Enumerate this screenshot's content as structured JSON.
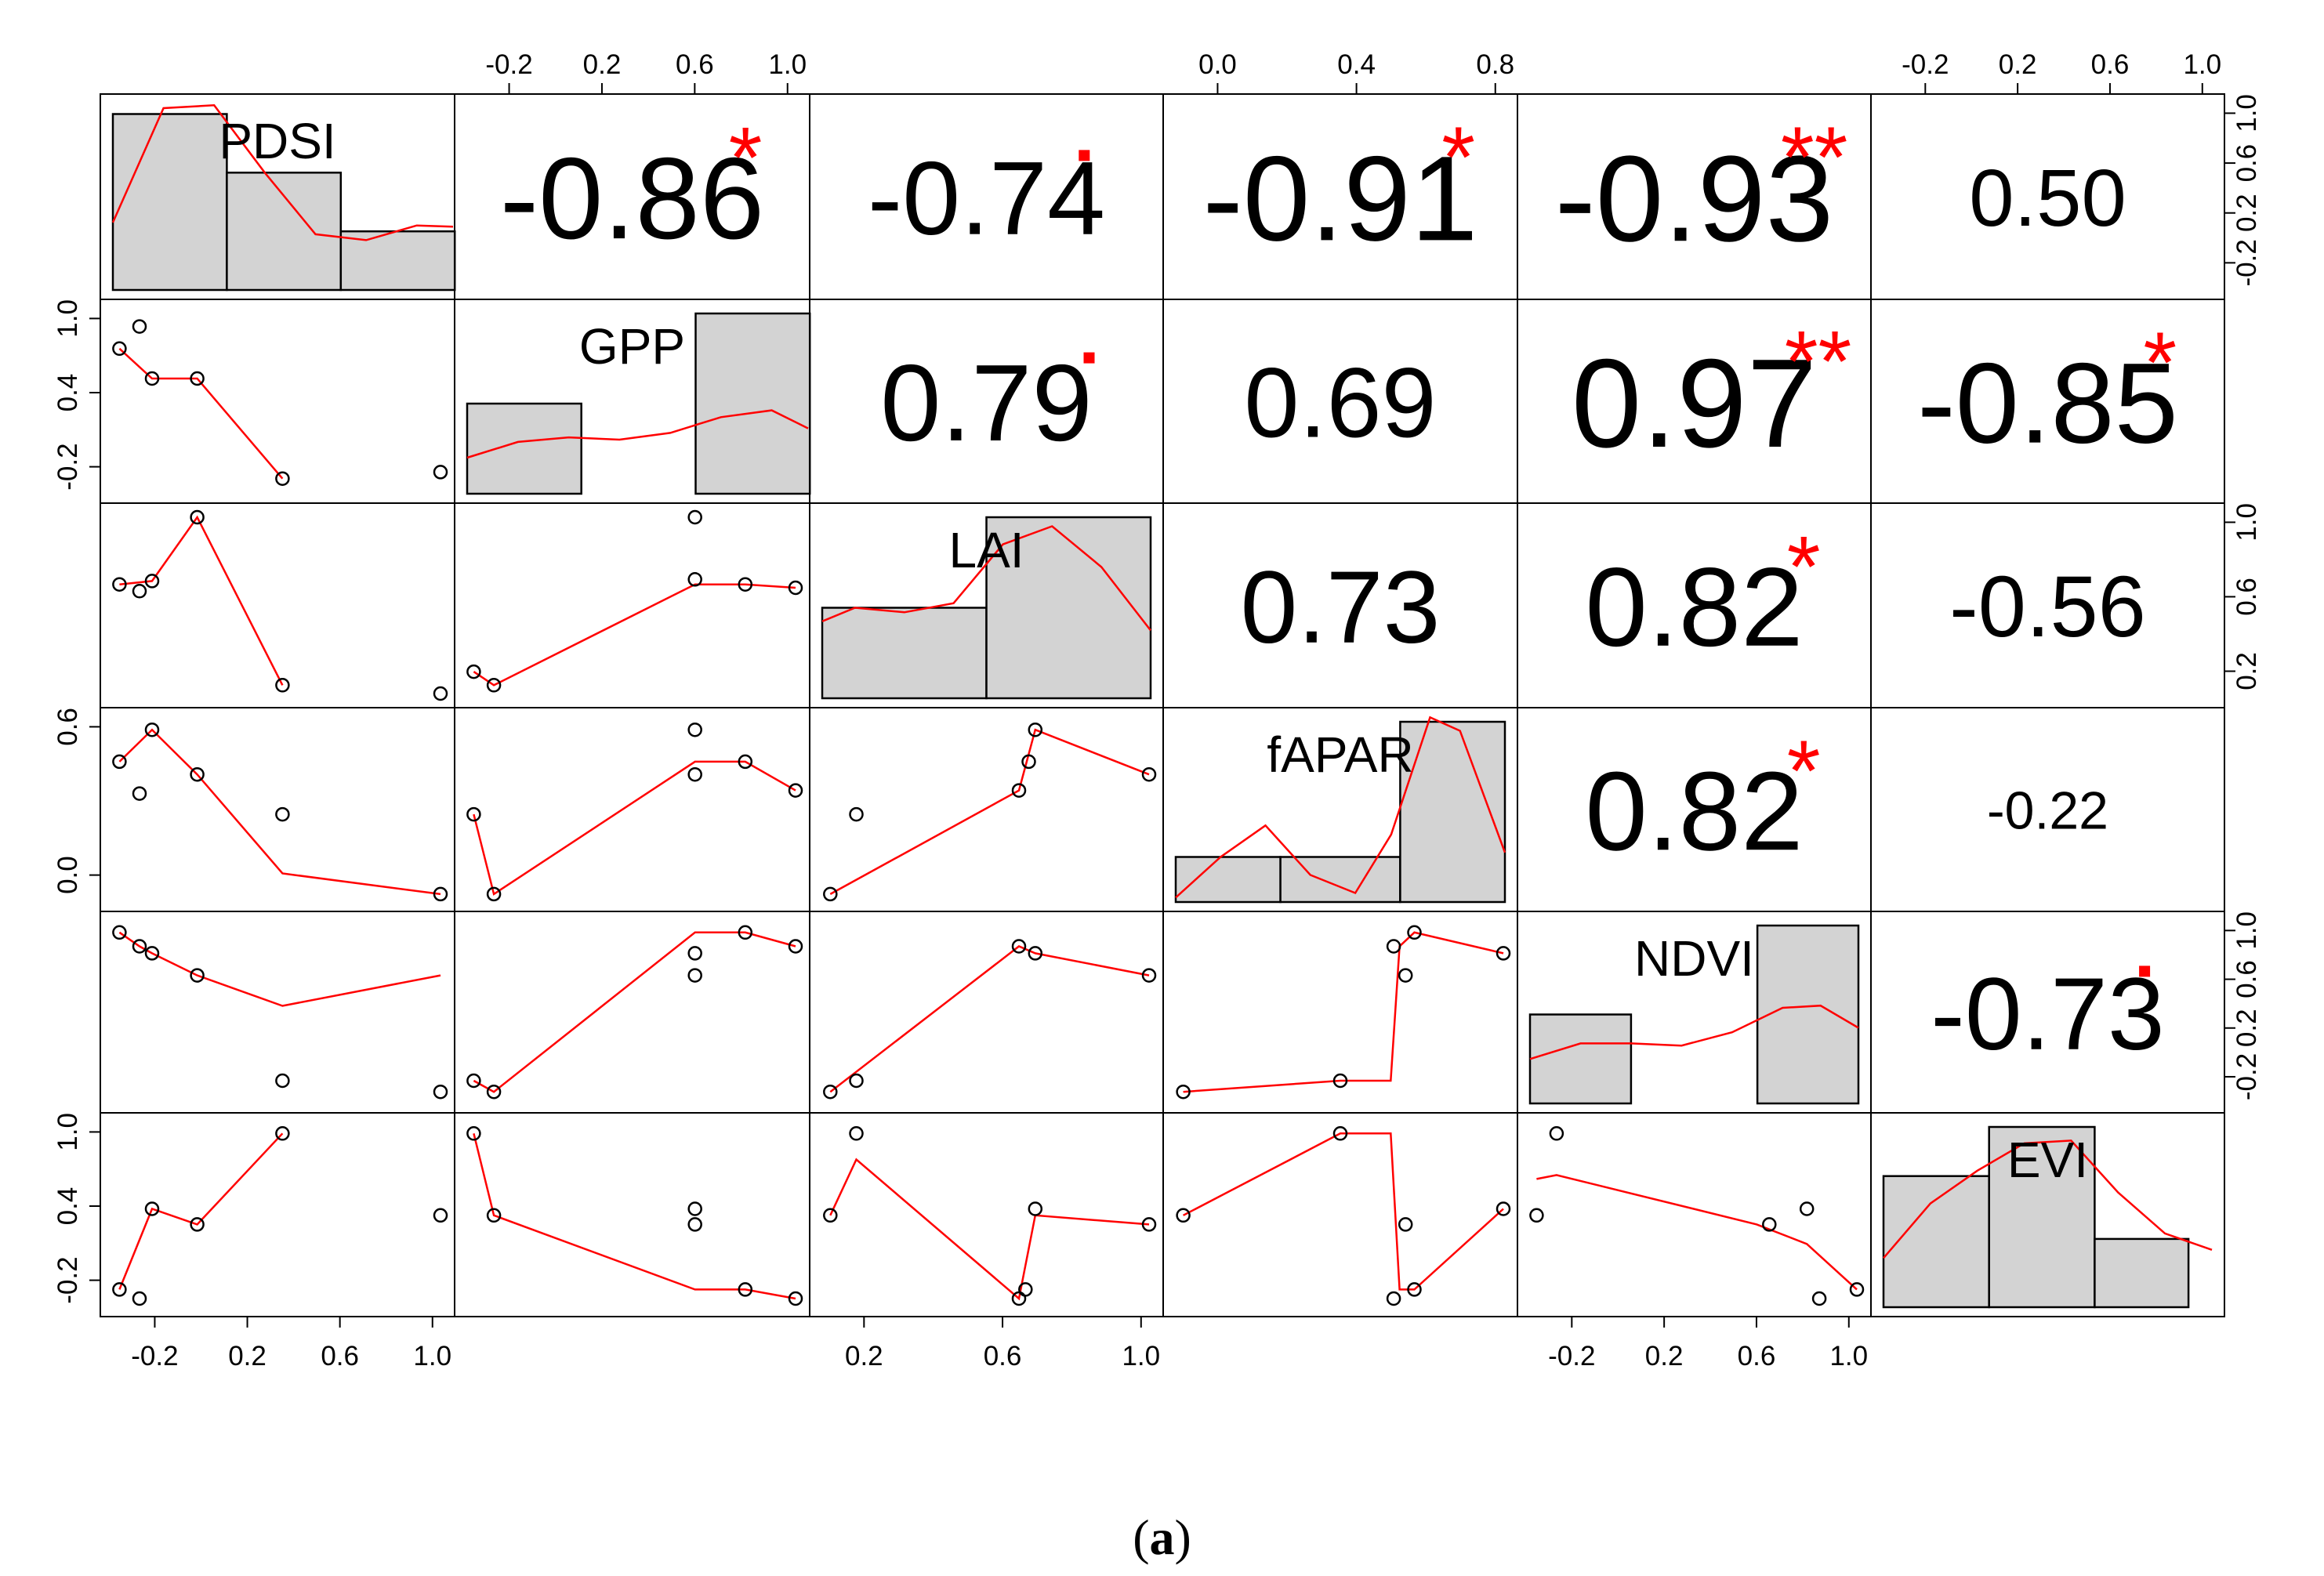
{
  "chart_data": {
    "type": "scatter-matrix",
    "variables": [
      "PDSI",
      "GPP",
      "LAI",
      "fAPAR",
      "NDVI",
      "EVI"
    ],
    "axis_ticks": {
      "top": [
        {
          "col": 1,
          "labels": [
            "-0.2",
            "0.2",
            "0.6",
            "1.0"
          ]
        },
        {
          "col": 3,
          "labels": [
            "0.0",
            "0.4",
            "0.8"
          ]
        },
        {
          "col": 5,
          "labels": [
            "-0.2",
            "0.2",
            "0.6",
            "1.0"
          ]
        }
      ],
      "bottom": [
        {
          "col": 0,
          "labels": [
            "-0.2",
            "0.2",
            "0.6",
            "1.0"
          ]
        },
        {
          "col": 2,
          "labels": [
            "0.2",
            "0.6",
            "1.0"
          ]
        },
        {
          "col": 4,
          "labels": [
            "-0.2",
            "0.2",
            "0.6",
            "1.0"
          ]
        }
      ],
      "left": [
        {
          "row": 1,
          "labels": [
            "-0.2",
            "0.4",
            "1.0"
          ]
        },
        {
          "row": 3,
          "labels": [
            "0.0",
            "0.6"
          ]
        },
        {
          "row": 5,
          "labels": [
            "-0.2",
            "0.4",
            "1.0"
          ]
        }
      ],
      "right": [
        {
          "row": 0,
          "labels": [
            "-0.2",
            "0.2",
            "0.6",
            "1.0"
          ]
        },
        {
          "row": 2,
          "labels": [
            "0.2",
            "0.6",
            "1.0"
          ]
        },
        {
          "row": 4,
          "labels": [
            "-0.2",
            "0.2",
            "0.6",
            "1.0"
          ]
        }
      ]
    },
    "correlations": [
      {
        "row": 0,
        "col": 1,
        "value": "-0.86",
        "sig": "*"
      },
      {
        "row": 0,
        "col": 2,
        "value": "-0.74",
        "sig": "."
      },
      {
        "row": 0,
        "col": 3,
        "value": "-0.91",
        "sig": "*"
      },
      {
        "row": 0,
        "col": 4,
        "value": "-0.93",
        "sig": "**"
      },
      {
        "row": 0,
        "col": 5,
        "value": "0.50",
        "sig": ""
      },
      {
        "row": 1,
        "col": 2,
        "value": "0.79",
        "sig": "."
      },
      {
        "row": 1,
        "col": 3,
        "value": "0.69",
        "sig": ""
      },
      {
        "row": 1,
        "col": 4,
        "value": "0.97",
        "sig": "**"
      },
      {
        "row": 1,
        "col": 5,
        "value": "-0.85",
        "sig": "*"
      },
      {
        "row": 2,
        "col": 3,
        "value": "0.73",
        "sig": ""
      },
      {
        "row": 2,
        "col": 4,
        "value": "0.82",
        "sig": "*"
      },
      {
        "row": 2,
        "col": 5,
        "value": "-0.56",
        "sig": ""
      },
      {
        "row": 3,
        "col": 4,
        "value": "0.82",
        "sig": "*"
      },
      {
        "row": 3,
        "col": 5,
        "value": "-0.22",
        "sig": ""
      },
      {
        "row": 4,
        "col": 5,
        "value": "-0.73",
        "sig": "."
      }
    ],
    "histograms": [
      {
        "var": "PDSI",
        "range": [
          -0.3,
          1.0
        ],
        "bins": [
          [
            -0.3,
            0.15,
            3
          ],
          [
            0.15,
            0.6,
            2
          ],
          [
            0.6,
            1.05,
            1
          ]
        ],
        "density_x": [
          -0.3,
          -0.1,
          0.1,
          0.3,
          0.5,
          0.7,
          0.9,
          1.05
        ],
        "density_y": [
          1.15,
          3.1,
          3.15,
          2.0,
          0.95,
          0.85,
          1.1,
          1.08
        ],
        "ymax": 3.1
      },
      {
        "var": "GPP",
        "range": [
          -0.3,
          1.0
        ],
        "bins": [
          [
            -0.3,
            0.15,
            2
          ],
          [
            0.15,
            0.6,
            0
          ],
          [
            0.6,
            1.05,
            4
          ]
        ],
        "density_x": [
          -0.3,
          -0.1,
          0.1,
          0.3,
          0.5,
          0.7,
          0.9,
          1.05
        ],
        "density_y": [
          0.8,
          1.15,
          1.25,
          1.2,
          1.35,
          1.7,
          1.85,
          1.45
        ],
        "ymax": 4
      },
      {
        "var": "LAI",
        "range": [
          0.0,
          1.0
        ],
        "bins": [
          [
            0.0,
            0.5,
            2
          ],
          [
            0.5,
            1.0,
            4
          ]
        ],
        "density_x": [
          0.0,
          0.1,
          0.25,
          0.4,
          0.55,
          0.7,
          0.85,
          1.0
        ],
        "density_y": [
          1.7,
          2.0,
          1.9,
          2.1,
          3.4,
          3.8,
          2.9,
          1.5
        ],
        "ymax": 4
      },
      {
        "var": "fAPAR",
        "range": [
          -0.1,
          1.0
        ],
        "bins": [
          [
            -0.1,
            0.25,
            1
          ],
          [
            0.25,
            0.65,
            1
          ],
          [
            0.65,
            1.0,
            4
          ]
        ],
        "density_x": [
          -0.1,
          0.05,
          0.2,
          0.35,
          0.5,
          0.62,
          0.75,
          0.85,
          1.0
        ],
        "density_y": [
          0.1,
          1.0,
          1.7,
          0.6,
          0.2,
          1.5,
          4.1,
          3.8,
          1.1
        ],
        "ymax": 4
      },
      {
        "var": "NDVI",
        "range": [
          -0.3,
          1.0
        ],
        "bins": [
          [
            -0.3,
            0.1,
            2
          ],
          [
            0.1,
            0.6,
            0
          ],
          [
            0.6,
            1.0,
            4
          ]
        ],
        "density_x": [
          -0.3,
          -0.1,
          0.1,
          0.3,
          0.5,
          0.7,
          0.85,
          1.0
        ],
        "density_y": [
          1.0,
          1.35,
          1.35,
          1.3,
          1.6,
          2.15,
          2.2,
          1.7
        ],
        "ymax": 4
      },
      {
        "var": "EVI",
        "range": [
          -0.3,
          1.1
        ],
        "bins": [
          [
            -0.3,
            0.15,
            2.4
          ],
          [
            0.15,
            0.6,
            3.3
          ],
          [
            0.6,
            1.0,
            1.25
          ]
        ],
        "density_x": [
          -0.3,
          -0.1,
          0.1,
          0.3,
          0.5,
          0.7,
          0.9,
          1.1
        ],
        "density_y": [
          0.9,
          1.9,
          2.5,
          3.0,
          3.05,
          2.1,
          1.35,
          1.05
        ],
        "ymax": 3.3
      }
    ],
    "scatter_x_ranges": [
      [
        -0.3,
        1.0
      ],
      [
        -0.3,
        1.0
      ],
      [
        0.0,
        1.0
      ],
      [
        -0.1,
        1.0
      ],
      [
        -0.3,
        1.0
      ],
      [
        -0.3,
        1.0
      ]
    ],
    "scatter_y_ranges": [
      [
        -0.3,
        1.0
      ],
      [
        -0.25,
        1.1
      ],
      [
        -0.05,
        1.0
      ],
      [
        -0.1,
        1.0
      ],
      [
        -0.2,
        1.05
      ],
      [
        -0.3,
        1.05
      ]
    ],
    "scatter_panels": [
      {
        "row": 1,
        "col": 0,
        "points": [
          [
            -0.28,
            0.83
          ],
          [
            -0.2,
            1.0
          ],
          [
            -0.15,
            0.6
          ],
          [
            0.03,
            0.6
          ],
          [
            0.37,
            -0.17
          ],
          [
            1.0,
            -0.12
          ]
        ],
        "smooth": [
          [
            -0.28,
            0.83
          ],
          [
            -0.15,
            0.6
          ],
          [
            0.03,
            0.6
          ],
          [
            0.37,
            -0.17
          ]
        ]
      },
      {
        "row": 2,
        "col": 0,
        "points": [
          [
            -0.28,
            0.6
          ],
          [
            -0.2,
            0.56
          ],
          [
            -0.15,
            0.62
          ],
          [
            0.03,
            1.0
          ],
          [
            0.37,
            0.0
          ],
          [
            1.0,
            -0.05
          ]
        ],
        "smooth": [
          [
            -0.28,
            0.6
          ],
          [
            -0.15,
            0.62
          ],
          [
            0.03,
            1.0
          ],
          [
            0.37,
            0.0
          ]
        ]
      },
      {
        "row": 2,
        "col": 1,
        "points": [
          [
            -0.28,
            0.08
          ],
          [
            -0.2,
            0.0
          ],
          [
            0.6,
            1.0
          ],
          [
            0.6,
            0.63
          ],
          [
            0.8,
            0.6
          ],
          [
            1.0,
            0.58
          ]
        ],
        "smooth": [
          [
            -0.28,
            0.08
          ],
          [
            -0.2,
            0.0
          ],
          [
            0.6,
            0.6
          ],
          [
            0.8,
            0.6
          ],
          [
            1.0,
            0.58
          ]
        ]
      },
      {
        "row": 3,
        "col": 0,
        "points": [
          [
            -0.28,
            0.75
          ],
          [
            -0.2,
            0.55
          ],
          [
            -0.15,
            0.95
          ],
          [
            0.03,
            0.67
          ],
          [
            0.37,
            0.42
          ],
          [
            1.0,
            -0.08
          ]
        ],
        "smooth": [
          [
            -0.28,
            0.75
          ],
          [
            -0.15,
            0.95
          ],
          [
            0.03,
            0.67
          ],
          [
            0.37,
            0.05
          ],
          [
            1.0,
            -0.08
          ]
        ]
      },
      {
        "row": 3,
        "col": 1,
        "points": [
          [
            -0.28,
            0.42
          ],
          [
            -0.2,
            -0.08
          ],
          [
            0.6,
            0.95
          ],
          [
            0.6,
            0.67
          ],
          [
            0.8,
            0.75
          ],
          [
            1.0,
            0.57
          ]
        ],
        "smooth": [
          [
            -0.28,
            0.42
          ],
          [
            -0.2,
            -0.08
          ],
          [
            0.6,
            0.75
          ],
          [
            0.8,
            0.75
          ],
          [
            1.0,
            0.57
          ]
        ]
      },
      {
        "row": 3,
        "col": 2,
        "points": [
          [
            0.02,
            -0.08
          ],
          [
            0.1,
            0.42
          ],
          [
            0.6,
            0.57
          ],
          [
            0.63,
            0.75
          ],
          [
            0.65,
            0.95
          ],
          [
            1.0,
            0.67
          ]
        ],
        "smooth": [
          [
            0.02,
            -0.08
          ],
          [
            0.6,
            0.57
          ],
          [
            0.65,
            0.95
          ],
          [
            1.0,
            0.67
          ]
        ]
      },
      {
        "row": 4,
        "col": 0,
        "points": [
          [
            -0.28,
            1.0
          ],
          [
            -0.2,
            0.9
          ],
          [
            -0.15,
            0.85
          ],
          [
            0.03,
            0.69
          ],
          [
            0.37,
            -0.07
          ],
          [
            1.0,
            -0.15
          ]
        ],
        "smooth": [
          [
            -0.28,
            1.0
          ],
          [
            -0.2,
            0.9
          ],
          [
            -0.15,
            0.85
          ],
          [
            0.03,
            0.69
          ],
          [
            0.37,
            0.47
          ],
          [
            1.0,
            0.69
          ]
        ]
      },
      {
        "row": 4,
        "col": 1,
        "points": [
          [
            -0.28,
            -0.07
          ],
          [
            -0.2,
            -0.15
          ],
          [
            0.6,
            0.85
          ],
          [
            0.6,
            0.69
          ],
          [
            0.8,
            1.0
          ],
          [
            1.0,
            0.9
          ]
        ],
        "smooth": [
          [
            -0.28,
            -0.07
          ],
          [
            -0.2,
            -0.15
          ],
          [
            0.6,
            1.0
          ],
          [
            0.8,
            1.0
          ],
          [
            1.0,
            0.9
          ]
        ]
      },
      {
        "row": 4,
        "col": 2,
        "points": [
          [
            0.02,
            -0.15
          ],
          [
            0.1,
            -0.07
          ],
          [
            0.6,
            0.9
          ],
          [
            0.65,
            0.85
          ],
          [
            1.0,
            0.69
          ]
        ],
        "smooth": [
          [
            0.02,
            -0.15
          ],
          [
            0.6,
            0.9
          ],
          [
            0.65,
            0.85
          ],
          [
            1.0,
            0.69
          ]
        ]
      },
      {
        "row": 4,
        "col": 3,
        "points": [
          [
            -0.08,
            -0.15
          ],
          [
            0.45,
            -0.07
          ],
          [
            0.63,
            0.9
          ],
          [
            0.67,
            0.69
          ],
          [
            0.7,
            1.0
          ],
          [
            1.0,
            0.85
          ]
        ],
        "smooth": [
          [
            -0.08,
            -0.15
          ],
          [
            0.45,
            -0.07
          ],
          [
            0.62,
            -0.07
          ],
          [
            0.65,
            0.9
          ],
          [
            0.7,
            1.0
          ],
          [
            1.0,
            0.85
          ]
        ]
      },
      {
        "row": 5,
        "col": 0,
        "points": [
          [
            -0.28,
            -0.2
          ],
          [
            -0.2,
            -0.27
          ],
          [
            -0.15,
            0.42
          ],
          [
            0.03,
            0.3
          ],
          [
            0.37,
            1.0
          ],
          [
            1.0,
            0.37
          ]
        ],
        "smooth": [
          [
            -0.28,
            -0.2
          ],
          [
            -0.15,
            0.42
          ],
          [
            0.03,
            0.3
          ],
          [
            0.37,
            1.0
          ]
        ]
      },
      {
        "row": 5,
        "col": 1,
        "points": [
          [
            -0.28,
            1.0
          ],
          [
            -0.2,
            0.37
          ],
          [
            0.6,
            0.42
          ],
          [
            0.6,
            0.3
          ],
          [
            0.8,
            -0.2
          ],
          [
            1.0,
            -0.27
          ]
        ],
        "smooth": [
          [
            -0.28,
            1.0
          ],
          [
            -0.2,
            0.37
          ],
          [
            0.6,
            -0.2
          ],
          [
            0.8,
            -0.2
          ],
          [
            1.0,
            -0.27
          ]
        ]
      },
      {
        "row": 5,
        "col": 2,
        "points": [
          [
            0.02,
            0.37
          ],
          [
            0.1,
            1.0
          ],
          [
            0.6,
            -0.27
          ],
          [
            0.62,
            -0.2
          ],
          [
            0.65,
            0.42
          ],
          [
            1.0,
            0.3
          ]
        ],
        "smooth": [
          [
            0.02,
            0.37
          ],
          [
            0.1,
            0.8
          ],
          [
            0.6,
            -0.27
          ],
          [
            0.65,
            0.37
          ],
          [
            1.0,
            0.3
          ]
        ]
      },
      {
        "row": 5,
        "col": 3,
        "points": [
          [
            -0.08,
            0.37
          ],
          [
            0.45,
            1.0
          ],
          [
            0.63,
            -0.27
          ],
          [
            0.67,
            0.3
          ],
          [
            0.7,
            -0.2
          ],
          [
            1.0,
            0.42
          ]
        ],
        "smooth": [
          [
            -0.08,
            0.37
          ],
          [
            0.45,
            1.0
          ],
          [
            0.62,
            1.0
          ],
          [
            0.65,
            -0.2
          ],
          [
            0.7,
            -0.2
          ],
          [
            1.0,
            0.42
          ]
        ]
      },
      {
        "row": 5,
        "col": 4,
        "points": [
          [
            -0.28,
            0.37
          ],
          [
            -0.2,
            1.0
          ],
          [
            0.65,
            0.3
          ],
          [
            0.8,
            0.42
          ],
          [
            0.85,
            -0.27
          ],
          [
            1.0,
            -0.2
          ]
        ],
        "smooth": [
          [
            -0.28,
            0.65
          ],
          [
            -0.2,
            0.68
          ],
          [
            0.6,
            0.3
          ],
          [
            0.8,
            0.15
          ],
          [
            1.0,
            -0.2
          ]
        ]
      }
    ]
  },
  "caption": {
    "open": "(",
    "letter": "a",
    "close": ")"
  },
  "colors": {
    "smooth_line": "#ff0000",
    "significance": "#ff0000",
    "histogram_fill": "#d3d3d3",
    "frame": "#000000"
  }
}
